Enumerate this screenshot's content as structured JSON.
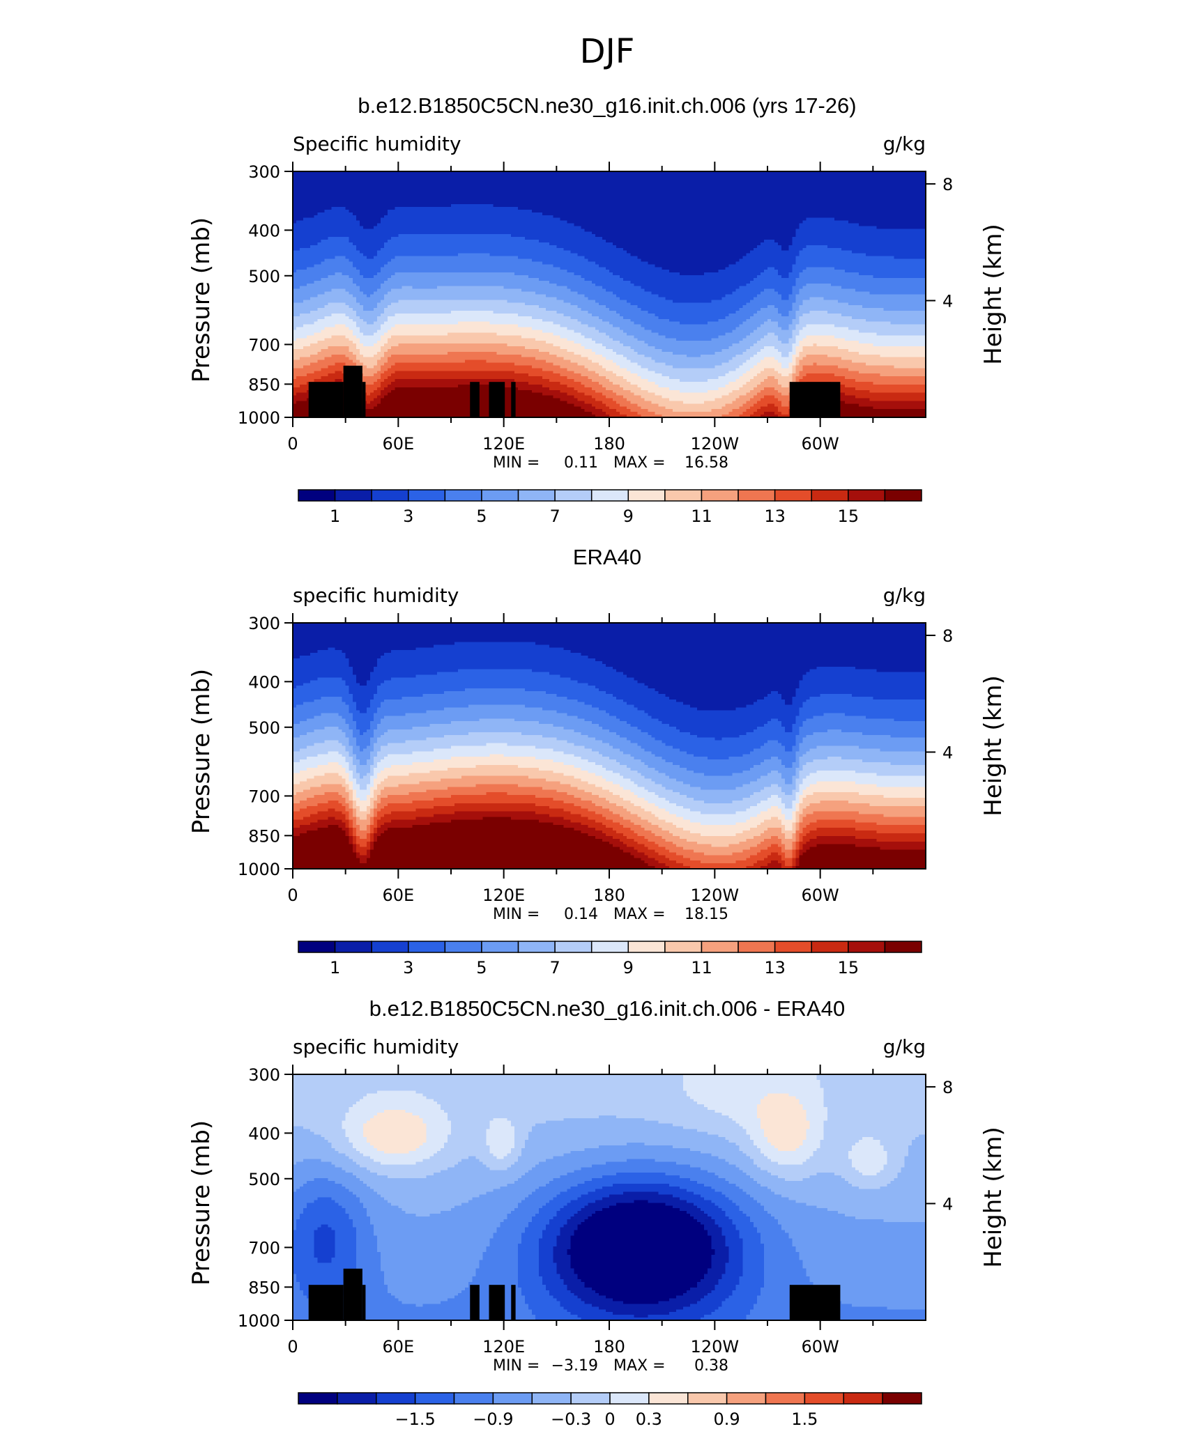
{
  "figure_title": "DJF",
  "chart_data": [
    {
      "type": "heatmap",
      "title": "b.e12.B1850C5CN.ne30_g16.init.ch.006 (yrs 17-26)",
      "left_string": "Specific humidity",
      "right_string": "g/kg",
      "xlabel": "",
      "ylabel": "Pressure (mb)",
      "ylabel_right": "Height (km)",
      "x_ticks": [
        "0",
        "60E",
        "120E",
        "180",
        "120W",
        "60W"
      ],
      "y_ticks": [
        "300",
        "400",
        "500",
        "700",
        "850",
        "1000"
      ],
      "height_ticks": [
        "8",
        "4"
      ],
      "stats": {
        "min_label": "MIN =",
        "min": "0.11",
        "max_label": "MAX =",
        "max": "16.58"
      },
      "colorbar_labels": [
        "1",
        "3",
        "5",
        "7",
        "9",
        "11",
        "13",
        "15"
      ],
      "colorbar_levels": [
        0,
        1,
        2,
        3,
        4,
        5,
        6,
        7,
        8,
        9,
        10,
        11,
        12,
        13,
        14,
        15,
        16
      ],
      "colors": [
        "#00007f",
        "#0a1ea8",
        "#1540d0",
        "#2b62e6",
        "#4a80ee",
        "#6c9cf3",
        "#8fb5f6",
        "#b4cdf8",
        "#dbe7fa",
        "#fbe5d6",
        "#f9c8ac",
        "#f5a17e",
        "#ef7651",
        "#e44d2a",
        "#c92a12",
        "#a50f0b",
        "#7a0000"
      ],
      "land_masks": true
    },
    {
      "type": "heatmap",
      "title": "ERA40",
      "left_string": "specific humidity",
      "right_string": "g/kg",
      "xlabel": "",
      "ylabel": "Pressure (mb)",
      "ylabel_right": "Height (km)",
      "x_ticks": [
        "0",
        "60E",
        "120E",
        "180",
        "120W",
        "60W"
      ],
      "y_ticks": [
        "300",
        "400",
        "500",
        "700",
        "850",
        "1000"
      ],
      "height_ticks": [
        "8",
        "4"
      ],
      "stats": {
        "min_label": "MIN =",
        "min": "0.14",
        "max_label": "MAX =",
        "max": "18.15"
      },
      "colorbar_labels": [
        "1",
        "3",
        "5",
        "7",
        "9",
        "11",
        "13",
        "15"
      ],
      "colorbar_levels": [
        0,
        1,
        2,
        3,
        4,
        5,
        6,
        7,
        8,
        9,
        10,
        11,
        12,
        13,
        14,
        15,
        16
      ],
      "colors": [
        "#00007f",
        "#0a1ea8",
        "#1540d0",
        "#2b62e6",
        "#4a80ee",
        "#6c9cf3",
        "#8fb5f6",
        "#b4cdf8",
        "#dbe7fa",
        "#fbe5d6",
        "#f9c8ac",
        "#f5a17e",
        "#ef7651",
        "#e44d2a",
        "#c92a12",
        "#a50f0b",
        "#7a0000"
      ],
      "land_masks": false
    },
    {
      "type": "heatmap",
      "title": "b.e12.B1850C5CN.ne30_g16.init.ch.006 - ERA40",
      "left_string": "specific humidity",
      "right_string": "g/kg",
      "xlabel": "",
      "ylabel": "Pressure (mb)",
      "ylabel_right": "Height (km)",
      "x_ticks": [
        "0",
        "60E",
        "120E",
        "180",
        "120W",
        "60W"
      ],
      "y_ticks": [
        "300",
        "400",
        "500",
        "700",
        "850",
        "1000"
      ],
      "height_ticks": [
        "8",
        "4"
      ],
      "stats": {
        "min_label": "MIN =",
        "min": "−3.19",
        "max_label": "MAX =",
        "max": "0.38"
      },
      "colorbar_labels": [
        "−1.5",
        "−0.9",
        "−0.3",
        "0",
        "0.3",
        "0.9",
        "1.5"
      ],
      "colorbar_levels": [
        -2.25,
        -1.95,
        -1.65,
        -1.35,
        -1.05,
        -0.75,
        -0.45,
        -0.15,
        0.15,
        0.45,
        0.75,
        1.05,
        1.35,
        1.65,
        1.95,
        2.25
      ],
      "colors": [
        "#00007f",
        "#0a1ea8",
        "#1540d0",
        "#2b62e6",
        "#4a80ee",
        "#6c9cf3",
        "#8fb5f6",
        "#b4cdf8",
        "#dbe7fa",
        "#fbe5d6",
        "#f9c8ac",
        "#f5a17e",
        "#ef7651",
        "#e44d2a",
        "#c92a12",
        "#7a0000"
      ],
      "land_masks": true
    }
  ]
}
